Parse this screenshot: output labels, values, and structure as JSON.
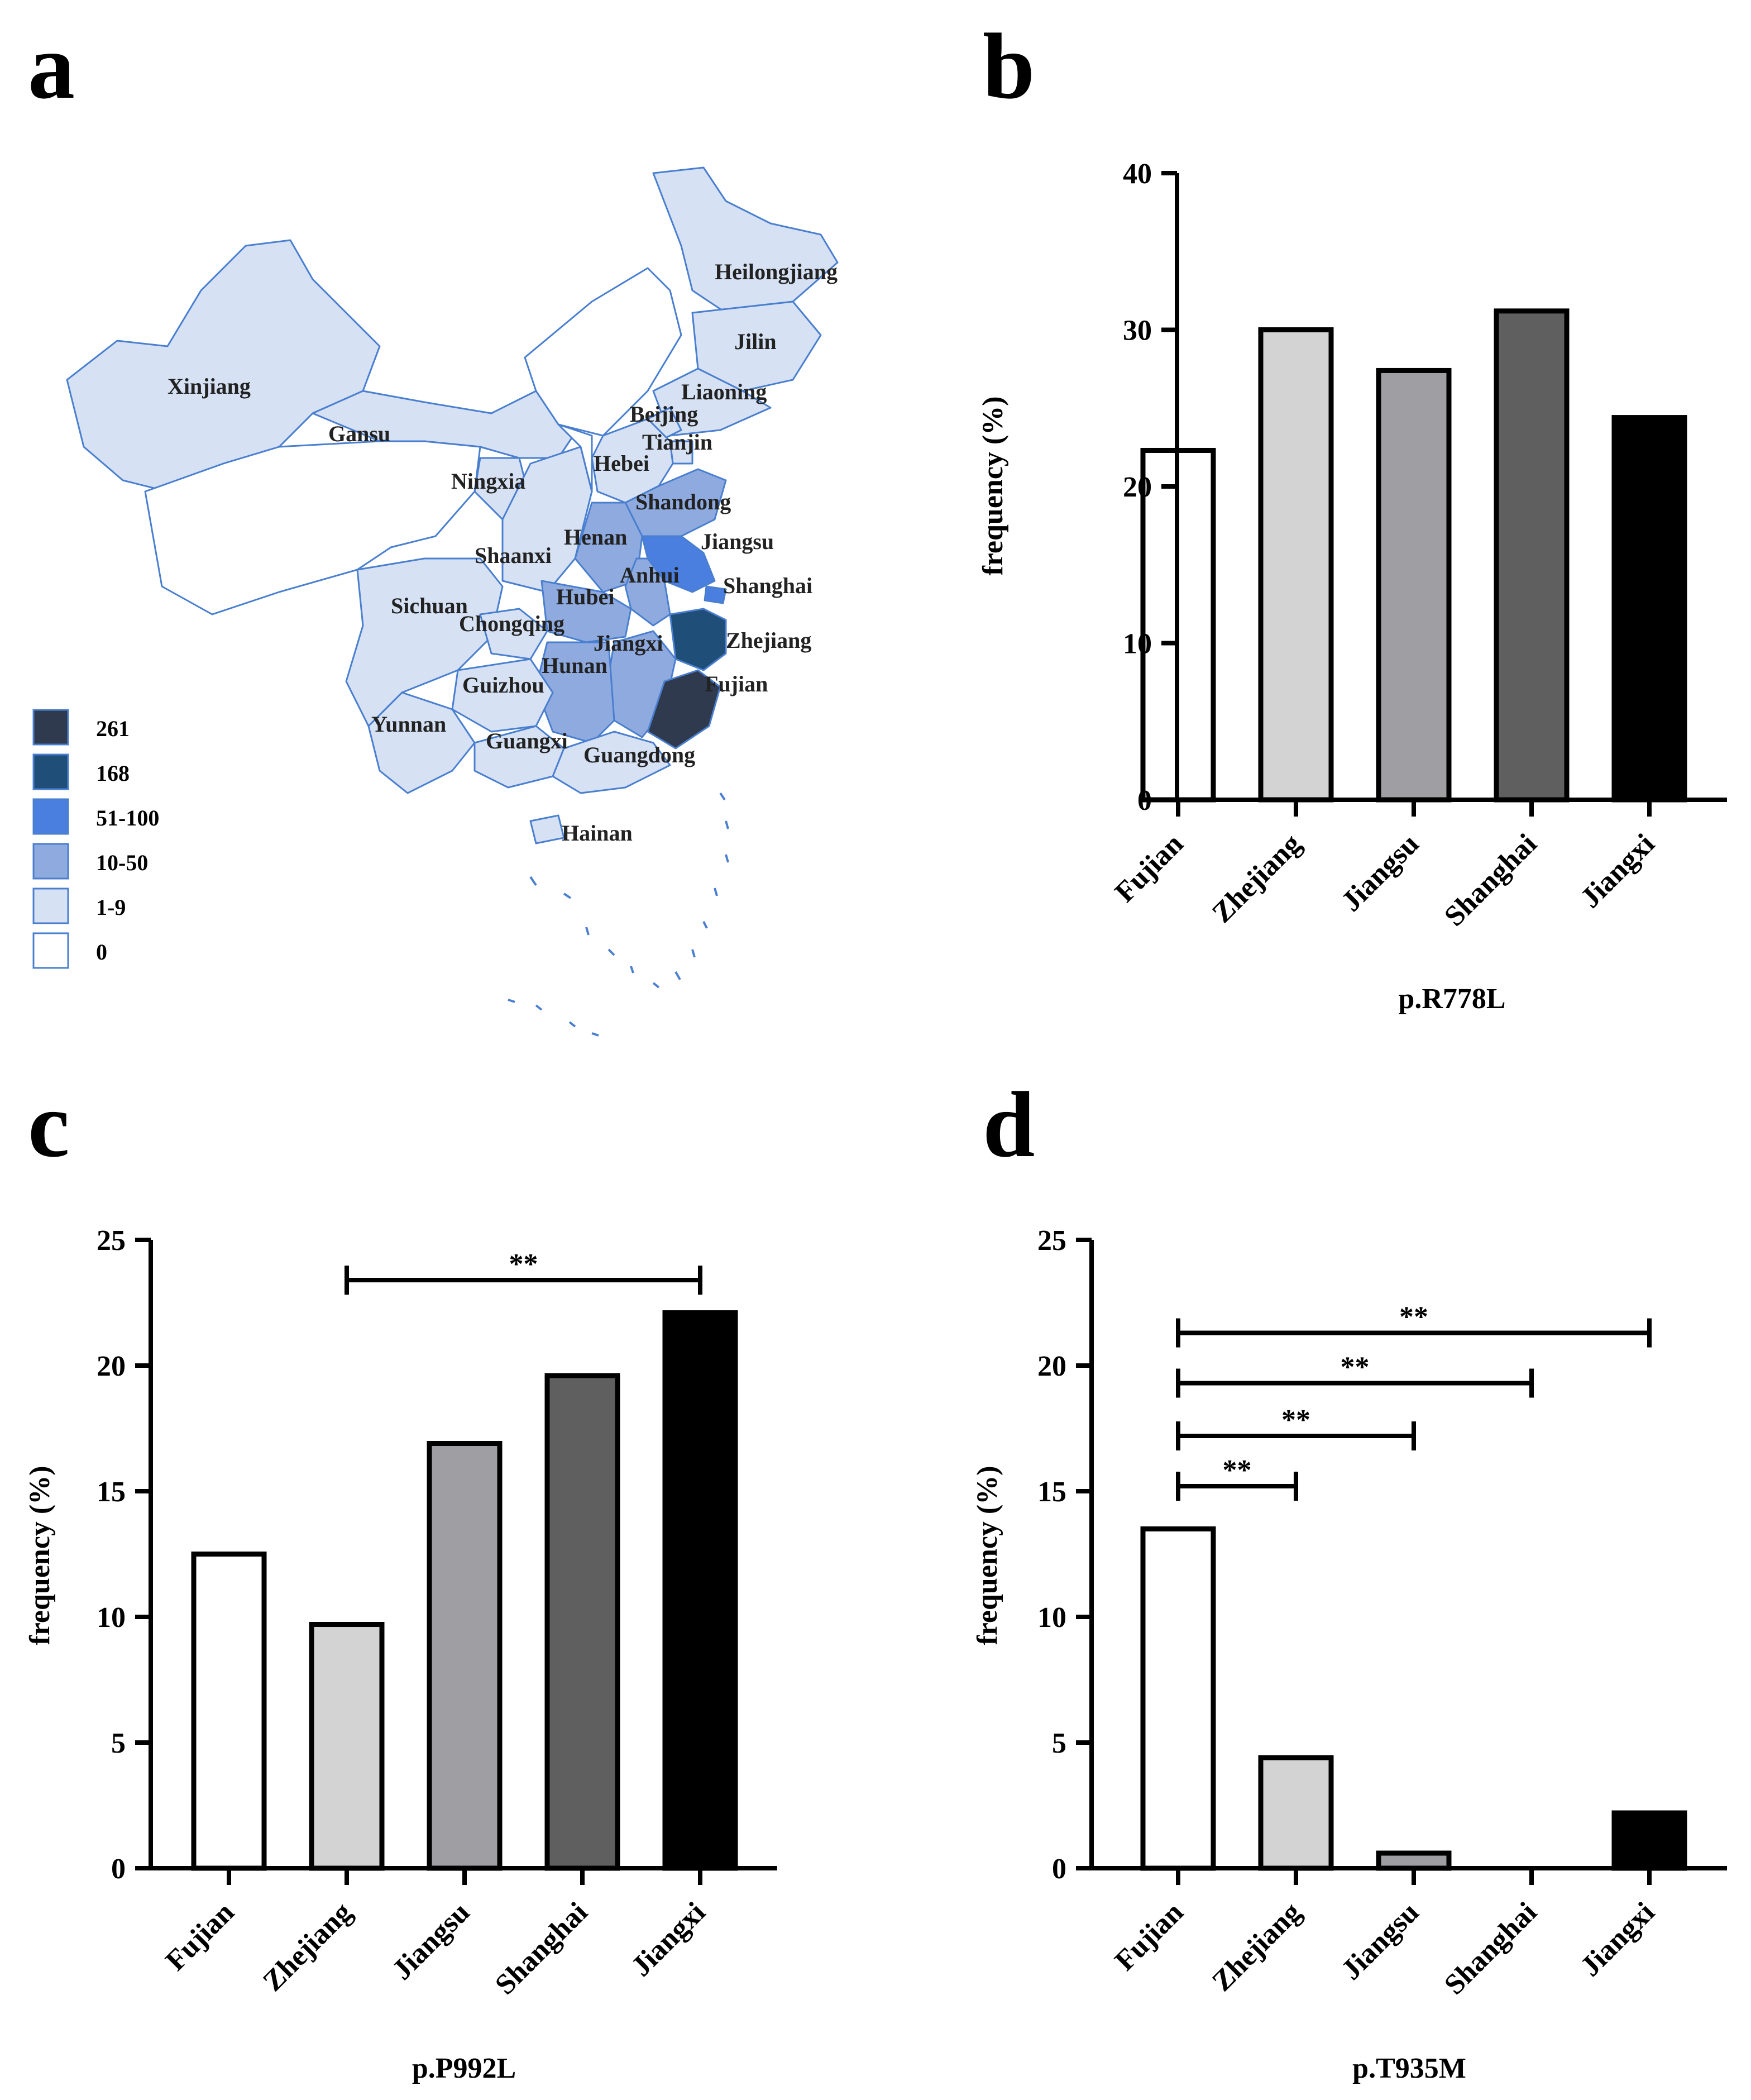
{
  "figure": {
    "panel_labels": [
      "a",
      "b",
      "c",
      "d"
    ]
  },
  "map": {
    "legend": [
      {
        "label": "261",
        "color": "#2f3a4f"
      },
      {
        "label": "168",
        "color": "#1f4e79"
      },
      {
        "label": "51-100",
        "color": "#4a7fe0"
      },
      {
        "label": "10-50",
        "color": "#8eaadf"
      },
      {
        "label": "1-9",
        "color": "#d6e1f3"
      },
      {
        "label": "0",
        "color": "#ffffff"
      }
    ],
    "border_color": "#4a7fcf",
    "provinces": [
      {
        "name": "Xinjiang",
        "category": "1-9"
      },
      {
        "name": "Gansu",
        "category": "1-9"
      },
      {
        "name": "Heilongjiang",
        "category": "1-9"
      },
      {
        "name": "Jilin",
        "category": "1-9"
      },
      {
        "name": "Liaoning",
        "category": "1-9"
      },
      {
        "name": "Beijing",
        "category": "1-9"
      },
      {
        "name": "Tianjin",
        "category": "1-9"
      },
      {
        "name": "Hebei",
        "category": "1-9"
      },
      {
        "name": "Ningxia",
        "category": "1-9"
      },
      {
        "name": "Shandong",
        "category": "10-50"
      },
      {
        "name": "Henan",
        "category": "10-50"
      },
      {
        "name": "Jiangsu",
        "category": "51-100"
      },
      {
        "name": "Shaanxi",
        "category": "1-9"
      },
      {
        "name": "Anhui",
        "category": "10-50"
      },
      {
        "name": "Shanghai",
        "category": "51-100"
      },
      {
        "name": "Sichuan",
        "category": "1-9"
      },
      {
        "name": "Hubei",
        "category": "10-50"
      },
      {
        "name": "Chongqing",
        "category": "1-9"
      },
      {
        "name": "Jiangxi",
        "category": "10-50"
      },
      {
        "name": "Zhejiang",
        "category": "168"
      },
      {
        "name": "Hunan",
        "category": "10-50"
      },
      {
        "name": "Guizhou",
        "category": "1-9"
      },
      {
        "name": "Fujian",
        "category": "261"
      },
      {
        "name": "Yunnan",
        "category": "1-9"
      },
      {
        "name": "Guangxi",
        "category": "1-9"
      },
      {
        "name": "Guangdong",
        "category": "1-9"
      },
      {
        "name": "Hainan",
        "category": "1-9"
      }
    ]
  },
  "chart_data": [
    {
      "panel": "b",
      "type": "bar",
      "title": "",
      "xlabel": "p.R778L",
      "ylabel": "frequency (%)",
      "ylim": [
        0,
        40
      ],
      "yticks": [
        0,
        10,
        20,
        30,
        40
      ],
      "categories": [
        "Fujian",
        "Zhejiang",
        "Jiangsu",
        "Shanghai",
        "Jiangxi"
      ],
      "values": [
        22.3,
        30.0,
        27.4,
        31.2,
        24.4
      ],
      "colors": [
        "#ffffff",
        "#d3d3d3",
        "#9e9ea3",
        "#5f5f5f",
        "#000000"
      ],
      "significance": []
    },
    {
      "panel": "c",
      "type": "bar",
      "title": "",
      "xlabel": "p.P992L",
      "ylabel": "frequency (%)",
      "ylim": [
        0,
        25
      ],
      "yticks": [
        0,
        5,
        10,
        15,
        20,
        25
      ],
      "categories": [
        "Fujian",
        "Zhejiang",
        "Jiangsu",
        "Shanghai",
        "Jiangxi"
      ],
      "values": [
        12.5,
        9.7,
        16.9,
        19.6,
        22.1
      ],
      "colors": [
        "#ffffff",
        "#d3d3d3",
        "#9e9ea3",
        "#5f5f5f",
        "#000000"
      ],
      "significance": [
        {
          "from": "Zhejiang",
          "to": "Jiangxi",
          "label": "**",
          "y": 23.4
        }
      ]
    },
    {
      "panel": "d",
      "type": "bar",
      "title": "",
      "xlabel": "p.T935M",
      "ylabel": "frequency (%)",
      "ylim": [
        0,
        25
      ],
      "yticks": [
        0,
        5,
        10,
        15,
        20,
        25
      ],
      "categories": [
        "Fujian",
        "Zhejiang",
        "Jiangsu",
        "Shanghai",
        "Jiangxi"
      ],
      "values": [
        13.5,
        4.4,
        0.6,
        0.0,
        2.2
      ],
      "colors": [
        "#ffffff",
        "#d3d3d3",
        "#9e9ea3",
        "#5f5f5f",
        "#000000"
      ],
      "significance": [
        {
          "from": "Fujian",
          "to": "Jiangxi",
          "label": "**",
          "y": 21.3
        },
        {
          "from": "Fujian",
          "to": "Shanghai",
          "label": "**",
          "y": 19.3
        },
        {
          "from": "Fujian",
          "to": "Jiangsu",
          "label": "**",
          "y": 17.2
        },
        {
          "from": "Fujian",
          "to": "Zhejiang",
          "label": "**",
          "y": 15.2
        }
      ]
    }
  ]
}
